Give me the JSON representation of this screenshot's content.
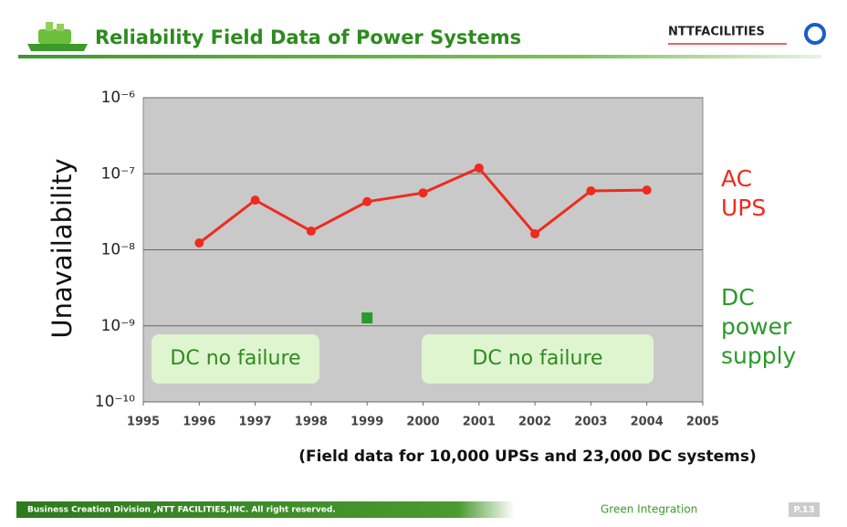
{
  "header": {
    "title": "Reliability Field Data of Power Systems",
    "logo": "NTTFACILITIES"
  },
  "chart_data": {
    "type": "line",
    "y_label": "Unavailability",
    "log_scale_y": true,
    "grid": true,
    "x": [
      1996,
      1997,
      1998,
      1999,
      2000,
      2001,
      2002,
      2003,
      2004
    ],
    "xlim": [
      1995,
      2005
    ],
    "xticks": [
      1995,
      1996,
      1997,
      1998,
      1999,
      2000,
      2001,
      2002,
      2003,
      2004,
      2005
    ],
    "ylim": [
      1e-10,
      1e-06
    ],
    "yticks": [
      {
        "value": 1e-10,
        "label": "10⁻¹⁰"
      },
      {
        "value": 1e-09,
        "label": "10⁻⁹"
      },
      {
        "value": 1e-08,
        "label": "10⁻⁸"
      },
      {
        "value": 1e-07,
        "label": "10⁻⁷"
      },
      {
        "value": 1e-06,
        "label": "10⁻⁶"
      }
    ],
    "series": [
      {
        "name": "AC UPS",
        "color": "#f02a1e",
        "marker": "circle",
        "values": [
          1.23e-08,
          4.5e-08,
          1.76e-08,
          4.3e-08,
          5.6e-08,
          1.19e-07,
          1.62e-08,
          5.96e-08,
          6.1e-08
        ]
      },
      {
        "name": "DC power supply",
        "color": "#2a9a2a",
        "marker": "square",
        "values": [
          null,
          null,
          null,
          1.27e-09,
          null,
          null,
          null,
          null,
          null
        ]
      }
    ],
    "annotations": [
      "DC no failure",
      "DC no failure"
    ],
    "note": "(Field data for 10,000 UPSs and 23,000 DC systems)"
  },
  "footer": {
    "left": "Business Creation Division ,NTT FACILITIES,INC. All right reserved.",
    "center": "Green Integration",
    "page": "P.13"
  }
}
